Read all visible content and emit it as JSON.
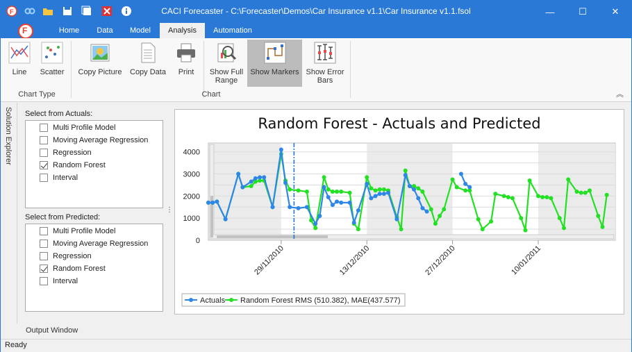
{
  "window": {
    "title": "CACI Forecaster - C:\\Forecaster\\Demos\\Car Insurance v1.1\\Car Insurance v1.1.fsol",
    "minimize": "—",
    "maximize": "☐",
    "close": "✕"
  },
  "app_button": "F",
  "tabs": [
    "Home",
    "Data",
    "Model",
    "Analysis",
    "Automation"
  ],
  "active_tab": "Analysis",
  "ribbon": {
    "chart_type_group": "Chart Type",
    "chart_group": "Chart",
    "buttons": {
      "line": "Line",
      "scatter": "Scatter",
      "copy_picture": "Copy Picture",
      "copy_data": "Copy Data",
      "print": "Print",
      "show_full_range_1": "Show Full",
      "show_full_range_2": "Range",
      "show_markers": "Show Markers",
      "show_error_1": "Show Error",
      "show_error_2": "Bars"
    },
    "collapse": "︽"
  },
  "solution_explorer": "Solution Explorer",
  "actuals": {
    "label": "Select from Actuals:",
    "items": [
      {
        "label": "Multi Profile Model",
        "checked": false
      },
      {
        "label": "Moving Average Regression",
        "checked": false
      },
      {
        "label": "Regression",
        "checked": false
      },
      {
        "label": "Random Forest",
        "checked": true
      },
      {
        "label": "Interval",
        "checked": false
      }
    ]
  },
  "predicted": {
    "label": "Select from Predicted:",
    "items": [
      {
        "label": "Multi Profile Model",
        "checked": false
      },
      {
        "label": "Moving Average Regression",
        "checked": false
      },
      {
        "label": "Regression",
        "checked": false
      },
      {
        "label": "Random Forest",
        "checked": true
      },
      {
        "label": "Interval",
        "checked": false
      }
    ]
  },
  "chart_data": {
    "type": "line",
    "title": "Random Forest - Actuals and Predicted",
    "ylim": [
      0,
      4400
    ],
    "yticks": [
      "0",
      "1000",
      "2000",
      "3000",
      "4000"
    ],
    "ytick_values": [
      0,
      1000,
      2000,
      3000,
      4000
    ],
    "x_range": [
      0,
      95
    ],
    "date_ticks": [
      {
        "label": "29/11/2010",
        "x": 17
      },
      {
        "label": "13/12/2010",
        "x": 37
      },
      {
        "label": "27/12/2010",
        "x": 57
      },
      {
        "label": "10/01/2011",
        "x": 77
      }
    ],
    "grid": true,
    "legend_position": "bottom-left",
    "colors": {
      "actuals": "#2e86e8",
      "predicted": "#22e022",
      "shade": "#ebebeb",
      "cutoff": "#1f6fd0"
    },
    "cutoff_x": 20,
    "series": [
      {
        "name": "Actuals",
        "points": [
          [
            0,
            1700
          ],
          [
            1,
            1700
          ],
          [
            2,
            1750
          ],
          [
            4,
            950
          ],
          [
            7,
            3000
          ],
          [
            8,
            2400
          ],
          [
            10,
            2650
          ],
          [
            11,
            2800
          ],
          [
            12,
            2850
          ],
          [
            13,
            2850
          ],
          [
            15,
            1500
          ],
          [
            17,
            4100
          ],
          [
            18,
            2600
          ],
          [
            19,
            1500
          ],
          [
            21,
            1450
          ],
          [
            23,
            1500
          ],
          [
            25,
            750
          ],
          [
            26,
            1100
          ],
          [
            27,
            2400
          ],
          [
            28,
            1950
          ],
          [
            29,
            1600
          ],
          [
            30,
            1750
          ],
          [
            31,
            1700
          ],
          [
            33,
            1700
          ],
          [
            34,
            800
          ],
          [
            35,
            1350
          ],
          [
            37,
            2550
          ],
          [
            38,
            1900
          ],
          [
            39,
            2000
          ],
          [
            40,
            2100
          ],
          [
            41,
            2100
          ],
          [
            42,
            2150
          ],
          [
            44,
            950
          ],
          [
            46,
            2950
          ],
          [
            47,
            2450
          ],
          [
            48,
            2300
          ],
          [
            49,
            1900
          ],
          [
            50,
            1450
          ],
          [
            51,
            1300
          ],
          [
            59,
            3000
          ],
          [
            60,
            2550
          ],
          [
            61,
            2400
          ]
        ]
      },
      {
        "name": "Random Forest RMS (510.382), MAE(437.577)",
        "points": [
          [
            0,
            1700
          ],
          [
            1,
            1700
          ],
          [
            2,
            1750
          ],
          [
            4,
            950
          ],
          [
            7,
            3000
          ],
          [
            8,
            2400
          ],
          [
            10,
            2450
          ],
          [
            11,
            2650
          ],
          [
            12,
            2700
          ],
          [
            13,
            2700
          ],
          [
            15,
            1500
          ],
          [
            17,
            3900
          ],
          [
            18,
            2700
          ],
          [
            19,
            2300
          ],
          [
            21,
            2250
          ],
          [
            23,
            2200
          ],
          [
            24,
            900
          ],
          [
            25,
            550
          ],
          [
            27,
            2850
          ],
          [
            28,
            2300
          ],
          [
            29,
            2200
          ],
          [
            30,
            2200
          ],
          [
            31,
            2200
          ],
          [
            33,
            2150
          ],
          [
            34,
            750
          ],
          [
            35,
            500
          ],
          [
            37,
            2850
          ],
          [
            38,
            2350
          ],
          [
            39,
            2250
          ],
          [
            40,
            2300
          ],
          [
            41,
            2300
          ],
          [
            42,
            2250
          ],
          [
            44,
            1050
          ],
          [
            45,
            500
          ],
          [
            46,
            3150
          ],
          [
            47,
            2450
          ],
          [
            48,
            2450
          ],
          [
            49,
            2350
          ],
          [
            50,
            2200
          ],
          [
            52,
            1400
          ],
          [
            53,
            750
          ],
          [
            54,
            1100
          ],
          [
            55,
            1400
          ],
          [
            57,
            2750
          ],
          [
            58,
            2400
          ],
          [
            60,
            2250
          ],
          [
            61,
            2250
          ],
          [
            63,
            950
          ],
          [
            64,
            500
          ],
          [
            66,
            850
          ],
          [
            67,
            2100
          ],
          [
            69,
            2000
          ],
          [
            70,
            1950
          ],
          [
            71,
            1900
          ],
          [
            73,
            1000
          ],
          [
            74,
            450
          ],
          [
            75,
            2700
          ],
          [
            77,
            2000
          ],
          [
            78,
            1950
          ],
          [
            79,
            1950
          ],
          [
            80,
            1900
          ],
          [
            82,
            1000
          ],
          [
            83,
            550
          ],
          [
            84,
            2750
          ],
          [
            86,
            2200
          ],
          [
            87,
            2150
          ],
          [
            88,
            2150
          ],
          [
            89,
            2250
          ],
          [
            91,
            1100
          ],
          [
            92,
            600
          ],
          [
            93,
            2050
          ]
        ]
      }
    ]
  },
  "output_window": "Output Window",
  "status": "Ready"
}
